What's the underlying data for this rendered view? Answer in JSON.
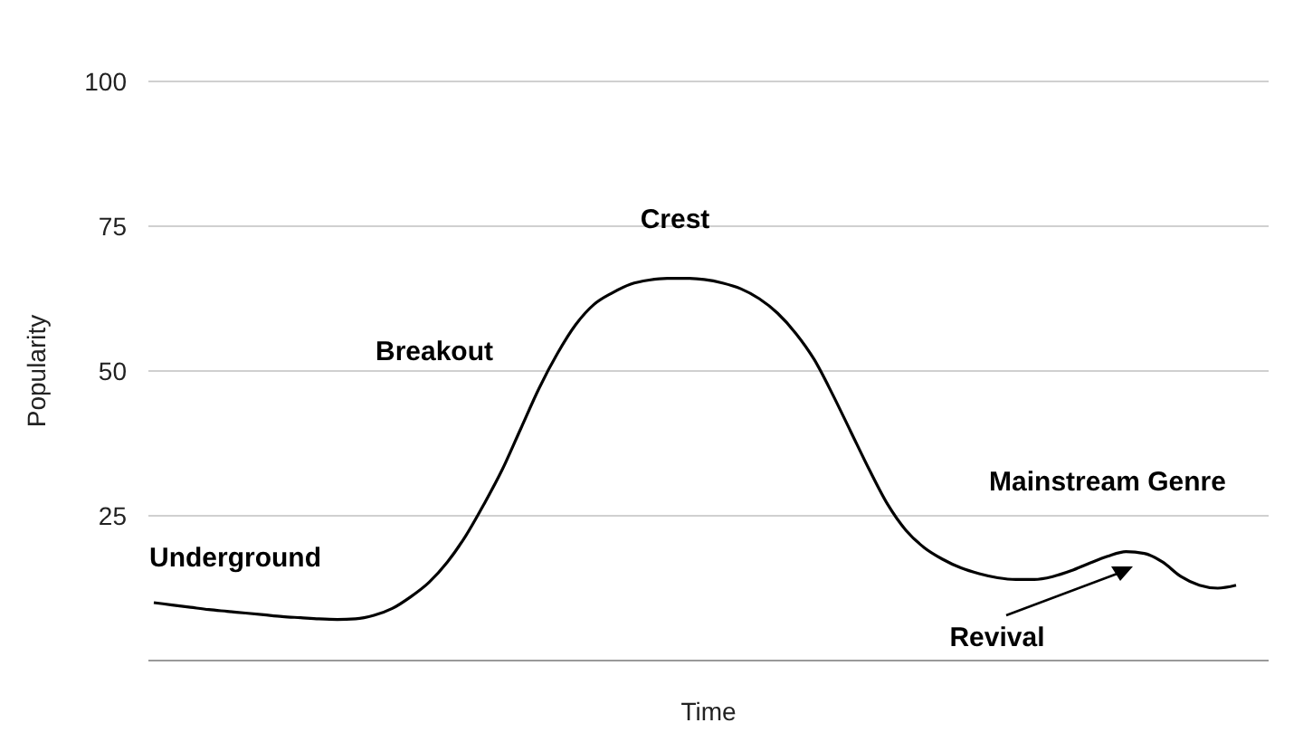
{
  "chart_data": {
    "type": "line",
    "xlabel": "Time",
    "ylabel": "Popularity",
    "categories": [
      null,
      null,
      null,
      null,
      null,
      null,
      null,
      null,
      null,
      null,
      null,
      null,
      null,
      null,
      null,
      null,
      null,
      null,
      null,
      null,
      null,
      null,
      null,
      null,
      null,
      null,
      null,
      null,
      null,
      null,
      null,
      null,
      null,
      null,
      null,
      null,
      null,
      null,
      null,
      null,
      null,
      null,
      null,
      null,
      null,
      null,
      null,
      null,
      null,
      null,
      null,
      null,
      null,
      null,
      null,
      null,
      null,
      null,
      null,
      null
    ],
    "series": [
      {
        "color": "#000000",
        "values": [
          10,
          9.6,
          9.2,
          8.8,
          8.5,
          8.2,
          7.9,
          7.6,
          7.4,
          7.2,
          7.1,
          7.2,
          7.8,
          9,
          11,
          13.5,
          17,
          21.5,
          27,
          33,
          40,
          47,
          53,
          58,
          61.5,
          63.5,
          65,
          65.7,
          66,
          66,
          65.8,
          65.2,
          64.2,
          62.5,
          60,
          56.5,
          52,
          46,
          39.5,
          33,
          27,
          22.5,
          19.5,
          17.5,
          16,
          15,
          14.3,
          14,
          14,
          14.5,
          15.5,
          16.8,
          18,
          18.8,
          18.5,
          17,
          14.5,
          13,
          12.5,
          13
        ]
      }
    ],
    "ylim": [
      0,
      100
    ],
    "yticks": [
      25,
      50,
      75,
      100
    ],
    "grid": "y",
    "marker": "none",
    "line_style": "solid",
    "annotations": [
      "Underground",
      "Breakout",
      "Crest",
      "Mainstream Genre",
      "Revival"
    ]
  }
}
